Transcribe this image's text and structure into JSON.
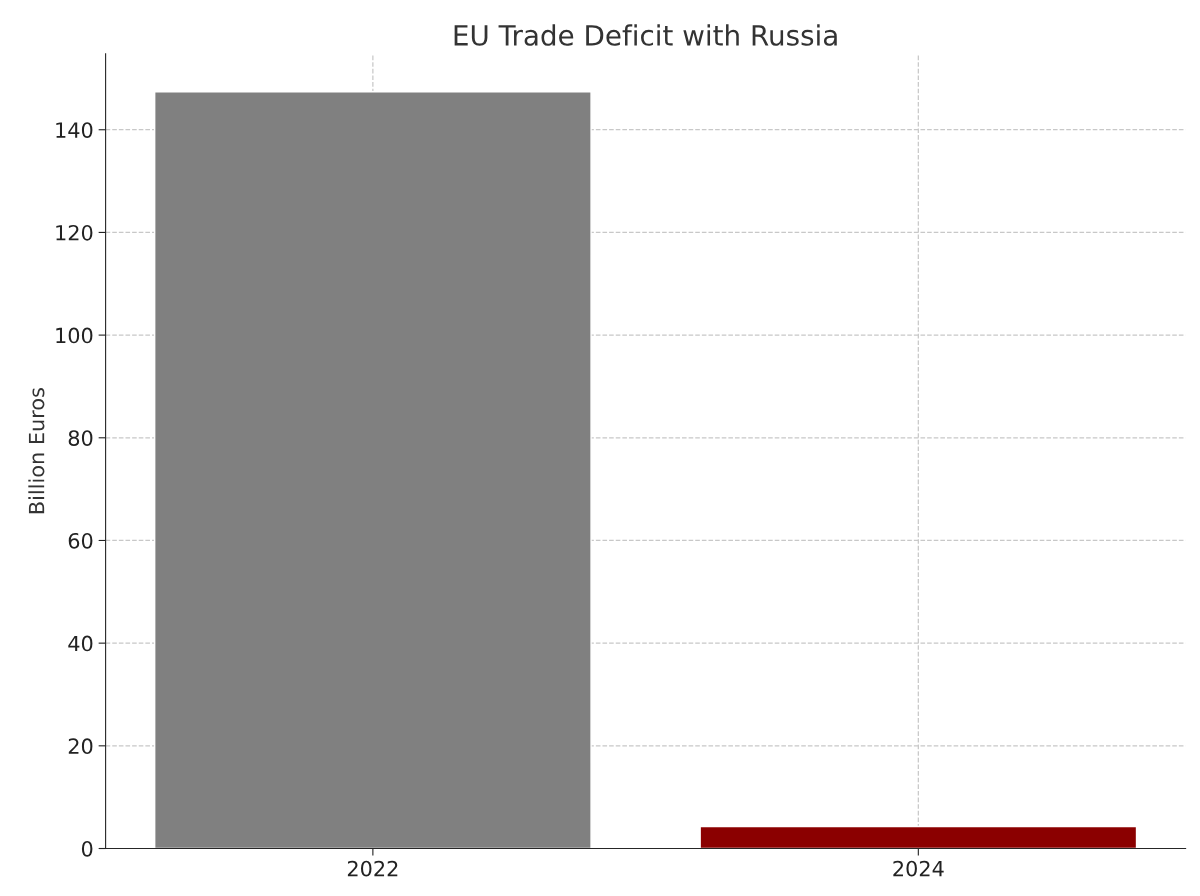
{
  "chart_data": {
    "type": "bar",
    "title": "EU Trade Deficit with Russia",
    "ylabel": "Billion Euros",
    "categories": [
      "2022",
      "2024"
    ],
    "values": [
      147.4,
      4.3
    ],
    "colors": [
      "#808080",
      "#8b0000"
    ],
    "ylim": [
      0,
      154.8
    ],
    "yticks": [
      0,
      20,
      40,
      60,
      80,
      100,
      120,
      140
    ],
    "grid": true
  }
}
